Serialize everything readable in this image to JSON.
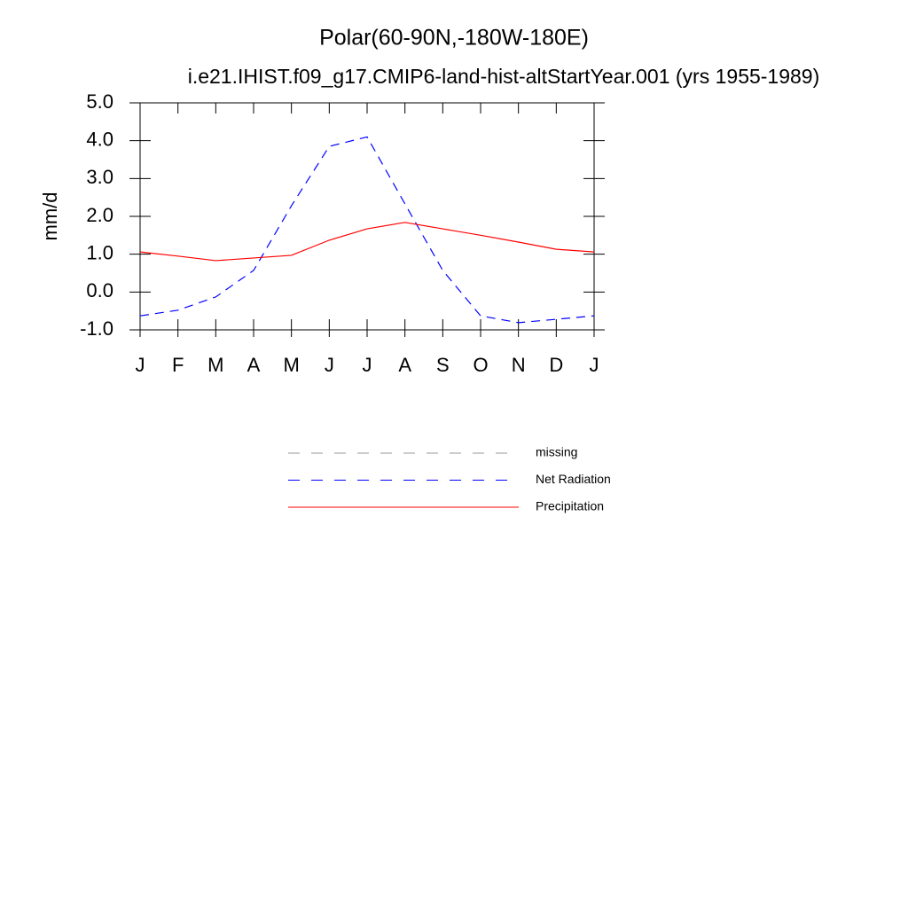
{
  "chart_data": {
    "type": "line",
    "title": "Polar(60-90N,-180W-180E)",
    "subtitle": "i.e21.IHIST.f09_g17.CMIP6-land-hist-altStartYear.001 (yrs 1955-1989)",
    "y_label": "mm/d",
    "categories": [
      "J",
      "F",
      "M",
      "A",
      "M",
      "J",
      "J",
      "A",
      "S",
      "O",
      "N",
      "D",
      "J"
    ],
    "ylim": [
      -1,
      5
    ],
    "yticks": [
      {
        "value": 5,
        "label": "5.0"
      },
      {
        "value": 4,
        "label": "4.0"
      },
      {
        "value": 3,
        "label": "3.0"
      },
      {
        "value": 2,
        "label": "2.0"
      },
      {
        "value": 1,
        "label": "1.0"
      },
      {
        "value": 0,
        "label": "0.0"
      },
      {
        "value": -1,
        "label": "-1.0"
      }
    ],
    "series": [
      {
        "name": "missing",
        "color": "#999999",
        "dash": true,
        "values": [
          null,
          null,
          null,
          null,
          null,
          null,
          null,
          null,
          null,
          null,
          null,
          null,
          null
        ]
      },
      {
        "name": "Net Radiation",
        "color": "#0000ff",
        "dash": true,
        "values": [
          -0.63,
          -0.48,
          -0.13,
          0.57,
          2.28,
          3.85,
          4.1,
          2.33,
          0.57,
          -0.63,
          -0.81,
          -0.72,
          -0.63
        ]
      },
      {
        "name": "Precipitation",
        "color": "#ff0000",
        "dash": false,
        "values": [
          1.06,
          0.95,
          0.83,
          0.9,
          0.97,
          1.37,
          1.67,
          1.84,
          1.67,
          1.5,
          1.32,
          1.13,
          1.06
        ]
      }
    ]
  }
}
